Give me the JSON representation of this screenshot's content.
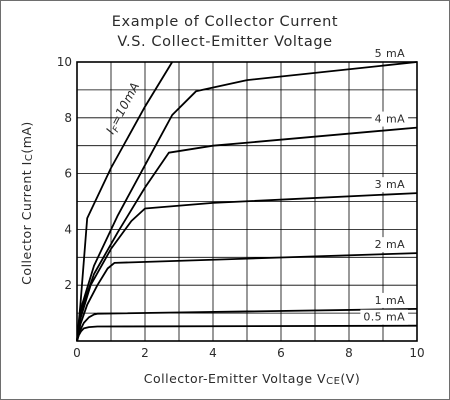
{
  "chart_data": {
    "type": "line",
    "title_line1": "Example of Collector Current",
    "title_line2": "V.S. Collect-Emitter Voltage",
    "xlabel": {
      "main": "Collector-Emitter Voltage V",
      "sub": "CE",
      "tail": "(V)"
    },
    "ylabel": {
      "main": "Collector Current I",
      "sub": "C",
      "tail": "(mA)"
    },
    "xlim": [
      0,
      10
    ],
    "ylim": [
      0,
      10
    ],
    "xticks": [
      0,
      2,
      4,
      6,
      8,
      10
    ],
    "yticks": [
      2,
      4,
      6,
      8,
      10
    ],
    "grid": true,
    "series": [
      {
        "name": "0.5 mA",
        "x": [
          0,
          0.05,
          0.12,
          0.2,
          0.35,
          0.6,
          10
        ],
        "y": [
          0,
          0.2,
          0.35,
          0.45,
          0.5,
          0.52,
          0.55
        ]
      },
      {
        "name": "1 mA",
        "x": [
          0,
          0.08,
          0.2,
          0.35,
          0.5,
          0.6,
          10
        ],
        "y": [
          0,
          0.35,
          0.65,
          0.85,
          0.95,
          0.98,
          1.15
        ]
      },
      {
        "name": "2 mA",
        "x": [
          0,
          0.1,
          0.3,
          0.6,
          0.9,
          1.1,
          10
        ],
        "y": [
          0,
          0.6,
          1.3,
          2.0,
          2.6,
          2.8,
          3.15
        ]
      },
      {
        "name": "3 mA",
        "x": [
          0,
          0.1,
          0.4,
          1.0,
          1.6,
          2.0,
          4,
          10
        ],
        "y": [
          0,
          0.8,
          2.0,
          3.3,
          4.3,
          4.75,
          4.95,
          5.3
        ]
      },
      {
        "name": "4 mA",
        "x": [
          0,
          0.1,
          0.5,
          1.2,
          2.0,
          2.7,
          4,
          10
        ],
        "y": [
          0,
          1.0,
          2.4,
          3.9,
          5.5,
          6.75,
          7.0,
          7.65
        ]
      },
      {
        "name": "5 mA",
        "x": [
          0,
          0.1,
          0.5,
          1.2,
          2.0,
          2.8,
          3.5,
          5,
          10
        ],
        "y": [
          0,
          1.1,
          2.7,
          4.5,
          6.3,
          8.1,
          8.95,
          9.35,
          10.0
        ]
      }
    ],
    "limit_line": {
      "x": [
        0,
        0.1,
        0.3,
        1.0,
        2.0,
        2.8
      ],
      "y": [
        0,
        1.3,
        4.4,
        6.2,
        8.4,
        10.0
      ]
    },
    "limit_label": {
      "main": "I",
      "sub": "F",
      "tail": "=10mA"
    },
    "series_colors": [
      "#000000"
    ]
  }
}
